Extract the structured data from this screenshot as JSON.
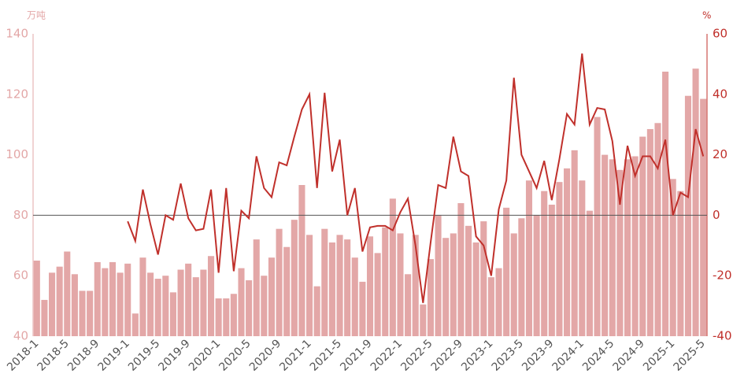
{
  "chart_data": {
    "type": "bar-line",
    "y_label": "万吨",
    "y2_label": "%",
    "categories": [
      "2018-1",
      null,
      null,
      null,
      "2018-5",
      null,
      null,
      null,
      "2018-9",
      null,
      null,
      null,
      "2019-1",
      null,
      null,
      null,
      "2019-5",
      null,
      null,
      null,
      "2019-9",
      null,
      null,
      null,
      "2020-1",
      null,
      null,
      null,
      "2020-5",
      null,
      null,
      null,
      "2020-9",
      null,
      null,
      null,
      "2021-1",
      null,
      null,
      null,
      "2021-5",
      null,
      null,
      null,
      "2021-9",
      null,
      null,
      null,
      "2022-1",
      null,
      null,
      null,
      "2022-5",
      null,
      null,
      null,
      "2022-9",
      null,
      null,
      null,
      "2023-1",
      null,
      null,
      null,
      "2023-5",
      null,
      null,
      null,
      "2023-9",
      null,
      null,
      null,
      "2024-1",
      null,
      null,
      null,
      "2024-5",
      null,
      null,
      null,
      "2024-9",
      null,
      null,
      null,
      "2025-1",
      null,
      null,
      null,
      "2025-5"
    ],
    "series": [
      {
        "type": "bar",
        "color": "#e3a7a7",
        "values": [
          65,
          52,
          61,
          63,
          68,
          60.5,
          55,
          55,
          64.5,
          62.5,
          64.5,
          61,
          64,
          47.5,
          66,
          61,
          59,
          60,
          54.5,
          62,
          64,
          59.5,
          62,
          66.5,
          52.5,
          52.5,
          54,
          62.5,
          58.5,
          72,
          60,
          66,
          75.5,
          69.5,
          78.5,
          90,
          73.5,
          56.5,
          75.5,
          71,
          73.5,
          72,
          66,
          58,
          73,
          67.5,
          76,
          85.5,
          74,
          60.5,
          73.5,
          50.5,
          65.5,
          80,
          72.5,
          74,
          84,
          76.5,
          71,
          78,
          59.5,
          62.5,
          82.5,
          74,
          79,
          91.5,
          80,
          88,
          83.5,
          91,
          95.5,
          101.5,
          91.5,
          81.5,
          112.5,
          100,
          98.5,
          95,
          98.5,
          99.5,
          106,
          108.5,
          110.5,
          127.5,
          92,
          88,
          119.5,
          128.5,
          118.5
        ]
      },
      {
        "type": "line",
        "axis": "y2",
        "color": "#c0302b",
        "values": [
          null,
          null,
          null,
          null,
          null,
          null,
          null,
          null,
          null,
          null,
          null,
          null,
          -2,
          -8.5,
          8.5,
          -3,
          -13,
          0,
          -1.5,
          10.5,
          -1,
          -5,
          -4.5,
          8.5,
          -19,
          9,
          -18.5,
          1.5,
          -1,
          19.5,
          9,
          6,
          17.5,
          16.5,
          26,
          35,
          40,
          9,
          40.5,
          14.5,
          25,
          0,
          9,
          -12,
          -4,
          -3.5,
          -3.5,
          -5,
          1,
          5.5,
          -10,
          -29,
          -9,
          10,
          9,
          26,
          14.5,
          13,
          -7,
          -10,
          -20,
          2,
          11.5,
          45.5,
          20,
          14.5,
          9,
          18,
          5,
          18.5,
          33.5,
          30,
          53.5,
          30,
          35.5,
          35,
          24.5,
          3.5,
          23,
          13,
          19.5,
          19.5,
          15.5,
          25,
          0,
          7.5,
          6,
          28.5,
          19.5
        ]
      }
    ],
    "ylim": [
      40,
      140
    ],
    "yticks": [
      40,
      60,
      80,
      100,
      120,
      140
    ],
    "y2lim": [
      -40,
      60
    ],
    "y2ticks": [
      -40,
      -20,
      0,
      20,
      40,
      60
    ],
    "y_color": "#e3a7a7",
    "y2_color": "#c0302b"
  }
}
